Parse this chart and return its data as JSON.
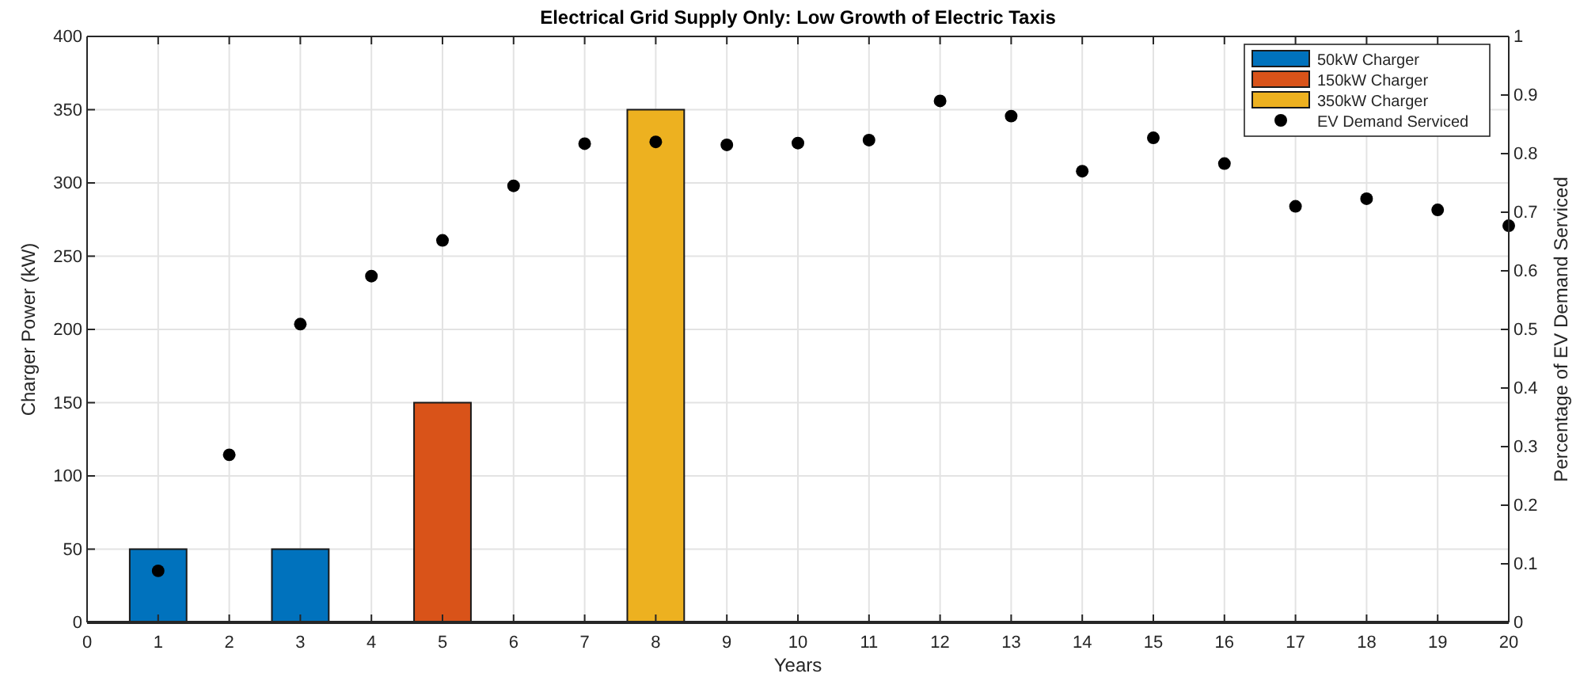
{
  "chart_data": {
    "type": "bar",
    "title": "Electrical Grid Supply Only: Low Growth of Electric Taxis",
    "xlabel": "Years",
    "ylabel": "Charger Power (kW)",
    "y2label": "Percentage of EV Demand Serviced",
    "xlim": [
      0,
      20
    ],
    "xticks": [
      0,
      1,
      2,
      3,
      4,
      5,
      6,
      7,
      8,
      9,
      10,
      11,
      12,
      13,
      14,
      15,
      16,
      17,
      18,
      19,
      20
    ],
    "ylim": [
      0,
      400
    ],
    "yticks": [
      0,
      50,
      100,
      150,
      200,
      250,
      300,
      350,
      400
    ],
    "y2lim": [
      0,
      1
    ],
    "y2ticks": [
      0,
      0.1,
      0.2,
      0.3,
      0.4,
      0.5,
      0.6,
      0.7,
      0.8,
      0.9,
      1
    ],
    "grid": true,
    "legend": "top right",
    "series": [
      {
        "name": "50kW Charger",
        "color": "#0072bd",
        "x": [
          1,
          3
        ],
        "values": [
          50,
          50
        ]
      },
      {
        "name": "150kW Charger",
        "color": "#d95319",
        "x": [
          5
        ],
        "values": [
          150
        ]
      },
      {
        "name": "350kW Charger",
        "color": "#edb120",
        "x": [
          8
        ],
        "values": [
          350
        ]
      },
      {
        "name": "EV Demand Serviced",
        "type": "scatter",
        "axis": "y2",
        "marker": "circle",
        "color": "#000000",
        "x": [
          1,
          2,
          3,
          4,
          5,
          6,
          7,
          8,
          9,
          10,
          11,
          12,
          13,
          14,
          15,
          16,
          17,
          18,
          19,
          20
        ],
        "values": [
          0.088,
          0.286,
          0.509,
          0.591,
          0.652,
          0.745,
          0.817,
          0.82,
          0.815,
          0.818,
          0.823,
          0.89,
          0.864,
          0.77,
          0.827,
          0.783,
          0.71,
          0.723,
          0.704,
          0.677
        ]
      }
    ]
  }
}
